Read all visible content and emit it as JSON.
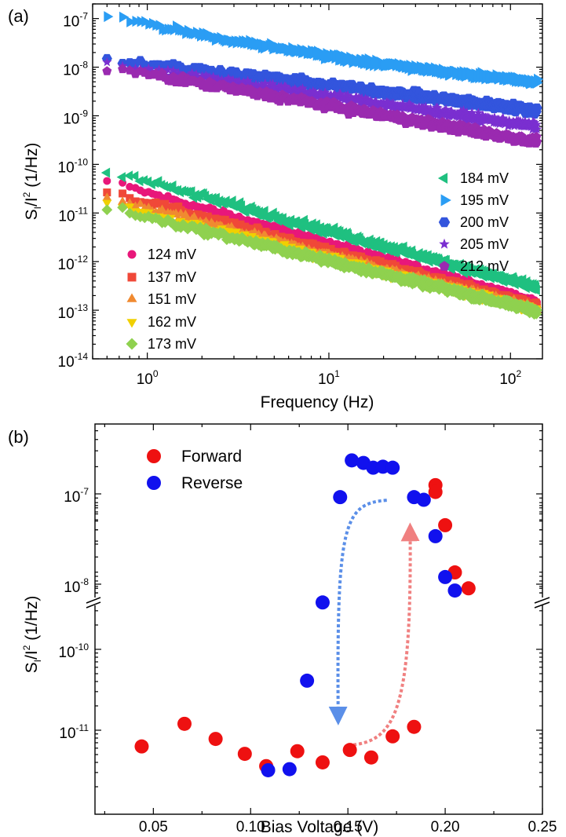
{
  "chart_data": [
    {
      "panel_label": "(a)",
      "type": "scatter",
      "xlabel": "Frequency (Hz)",
      "ylabel_main": "S",
      "ylabel_sub": "I",
      "ylabel_rest": "/I",
      "ylabel_sup": "2",
      "ylabel_unit": " (1/Hz)",
      "x_scale": "log",
      "y_scale": "log",
      "xlim": [
        0.5,
        150
      ],
      "ylim": [
        1e-14,
        2e-07
      ],
      "x_ticks": [
        {
          "value": 1,
          "base": "10",
          "exp": "0"
        },
        {
          "value": 10,
          "base": "10",
          "exp": "1"
        },
        {
          "value": 100,
          "base": "10",
          "exp": "2"
        }
      ],
      "y_ticks": [
        {
          "value": 1e-07,
          "base": "10",
          "exp": "-7"
        },
        {
          "value": 1e-08,
          "base": "10",
          "exp": "-8"
        },
        {
          "value": 1e-09,
          "base": "10",
          "exp": "-9"
        },
        {
          "value": 1e-10,
          "base": "10",
          "exp": "-10"
        },
        {
          "value": 1e-11,
          "base": "10",
          "exp": "-11"
        },
        {
          "value": 1e-12,
          "base": "10",
          "exp": "-12"
        },
        {
          "value": 1e-13,
          "base": "10",
          "exp": "-13"
        },
        {
          "value": 1e-14,
          "base": "10",
          "exp": "-14"
        }
      ],
      "legend_left_position": "bottom-left",
      "legend_right_position": "right-middle",
      "series": [
        {
          "name": "124 mV",
          "marker": "circle",
          "color": "#e8177a",
          "start": 4.5e-11,
          "slope": 1.05,
          "noise": 0.06,
          "group": "left"
        },
        {
          "name": "137 mV",
          "marker": "square",
          "color": "#f04838",
          "start": 2.8e-11,
          "slope": 1.0,
          "noise": 0.06,
          "group": "left"
        },
        {
          "name": "151 mV",
          "marker": "triangle-up",
          "color": "#f08a30",
          "start": 2e-11,
          "slope": 0.97,
          "noise": 0.06,
          "group": "left"
        },
        {
          "name": "162 mV",
          "marker": "triangle-down",
          "color": "#f0d000",
          "start": 1.6e-11,
          "slope": 0.93,
          "noise": 0.06,
          "group": "left"
        },
        {
          "name": "173 mV",
          "marker": "diamond",
          "color": "#8fd14f",
          "start": 1.3e-11,
          "slope": 0.9,
          "noise": 0.06,
          "group": "left"
        },
        {
          "name": "184 mV",
          "marker": "triangle-left",
          "color": "#1fc080",
          "start": 7.5e-11,
          "slope": 1.02,
          "noise": 0.07,
          "group": "right"
        },
        {
          "name": "195 mV",
          "marker": "triangle-right",
          "color": "#2a9df4",
          "start": 1.15e-07,
          "slope": 0.8,
          "noise": 0.05,
          "group": "right"
        },
        {
          "name": "200 mV",
          "marker": "hexagon",
          "color": "#3355dd",
          "start": 1.5e-08,
          "slope": 0.45,
          "noise": 0.07,
          "group": "right"
        },
        {
          "name": "205 mV",
          "marker": "star",
          "color": "#7a2fd0",
          "start": 1.2e-08,
          "slope": 0.55,
          "noise": 0.07,
          "group": "right"
        },
        {
          "name": "212 mV",
          "marker": "pentagon",
          "color": "#9a2ab0",
          "start": 1e-08,
          "slope": 0.65,
          "noise": 0.07,
          "group": "right"
        }
      ]
    },
    {
      "panel_label": "(b)",
      "type": "scatter",
      "xlabel": "Bias Voltage (V)",
      "ylabel_main": "S",
      "ylabel_sub": "I",
      "ylabel_rest": "/I",
      "ylabel_sup": "2",
      "ylabel_unit": " (1/Hz)",
      "y_scale": "log (broken axis)",
      "xlim": [
        0.02,
        0.25
      ],
      "x_ticks": [
        {
          "value": 0.05,
          "label": "0.05"
        },
        {
          "value": 0.1,
          "label": "0.10"
        },
        {
          "value": 0.15,
          "label": "0.15"
        },
        {
          "value": 0.2,
          "label": "0.20"
        },
        {
          "value": 0.25,
          "label": "0.25"
        }
      ],
      "y_ticks_upper": [
        {
          "value": 1e-07,
          "base": "10",
          "exp": "-7"
        },
        {
          "value": 1e-08,
          "base": "10",
          "exp": "-8"
        }
      ],
      "y_ticks_lower": [
        {
          "value": 1e-10,
          "base": "10",
          "exp": "-10"
        },
        {
          "value": 1e-11,
          "base": "10",
          "exp": "-11"
        }
      ],
      "legend_position": "top-left",
      "series": [
        {
          "name": "Forward",
          "color": "#ee1111",
          "points": [
            [
              0.044,
              6.3e-12
            ],
            [
              0.066,
              1.2e-11
            ],
            [
              0.082,
              7.8e-12
            ],
            [
              0.097,
              5.1e-12
            ],
            [
              0.108,
              3.6e-12
            ],
            [
              0.124,
              5.5e-12
            ],
            [
              0.137,
              4e-12
            ],
            [
              0.151,
              5.7e-12
            ],
            [
              0.162,
              4.6e-12
            ],
            [
              0.173,
              8.4e-12
            ],
            [
              0.184,
              1.1e-11
            ],
            [
              0.195,
              1.25e-07
            ],
            [
              0.195,
              1.05e-07
            ],
            [
              0.2,
              4.5e-08
            ],
            [
              0.205,
              1.35e-08
            ],
            [
              0.212,
              9e-09
            ]
          ]
        },
        {
          "name": "Reverse",
          "color": "#1111ee",
          "points": [
            [
              0.109,
              3.2e-12
            ],
            [
              0.12,
              3.3e-12
            ],
            [
              0.129,
              4.1e-11
            ],
            [
              0.137,
              3.8e-10
            ],
            [
              0.146,
              9.2e-08
            ],
            [
              0.152,
              2.35e-07
            ],
            [
              0.158,
              2.2e-07
            ],
            [
              0.163,
              1.95e-07
            ],
            [
              0.168,
              2e-07
            ],
            [
              0.173,
              1.95e-07
            ],
            [
              0.184,
              9.2e-08
            ],
            [
              0.189,
              8.6e-08
            ],
            [
              0.195,
              3.4e-08
            ],
            [
              0.2,
              1.2e-08
            ],
            [
              0.205,
              8.5e-09
            ]
          ]
        }
      ],
      "arrows": [
        {
          "name": "reverse-sweep-arrow",
          "color": "#5b8fe8",
          "from": [
            0.17,
            8.5e-08
          ],
          "to": [
            0.145,
            1.5e-11
          ]
        },
        {
          "name": "forward-sweep-arrow",
          "color": "#f08080",
          "from": [
            0.15,
            6.5e-12
          ],
          "to": [
            0.182,
            3.8e-08
          ]
        }
      ]
    }
  ]
}
